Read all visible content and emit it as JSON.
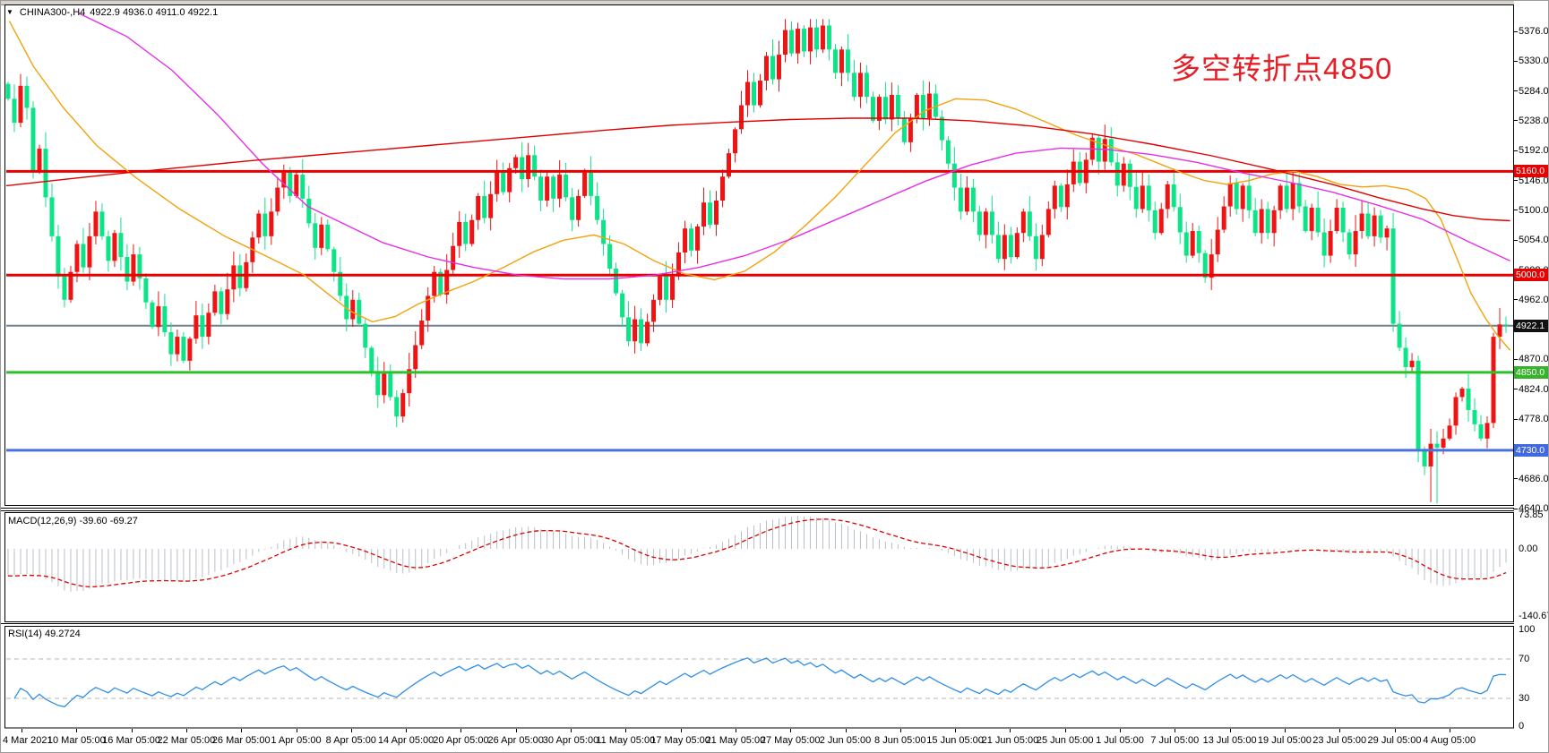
{
  "header": {
    "dropdown_icon": "▼",
    "symbol": "CHINA300-,H4",
    "ohlc_text": "4922.9 4936.0 4911.0 4922.1"
  },
  "annotation": {
    "text": "多空转折点4850",
    "color": "#e61e26"
  },
  "panels": {
    "macd": {
      "label": "MACD(12,26,9)",
      "values": "-39.60 -69.27",
      "axis": [
        "73.85",
        "0.00",
        "-140.67"
      ]
    },
    "rsi": {
      "label": "RSI(14)",
      "value": "49.2724",
      "axis": [
        "100",
        "70",
        "30",
        "0"
      ]
    }
  },
  "price_axis": {
    "ticks": [
      "5376.0",
      "5330.0",
      "5284.0",
      "5238.0",
      "5192.0",
      "5146.0",
      "5100.0",
      "5054.0",
      "5008.0",
      "4962.0",
      "4916.0",
      "4870.0",
      "4824.0",
      "4778.0",
      "4732.0",
      "4686.0",
      "4640.0"
    ],
    "badges": [
      {
        "label": "5160.0",
        "price": 5160,
        "bg": "#e60000"
      },
      {
        "label": "5000.0",
        "price": 5000,
        "bg": "#e60000"
      },
      {
        "label": "4922.1",
        "price": 4922.1,
        "bg": "#111111"
      },
      {
        "label": "4850.0",
        "price": 4850,
        "bg": "#36b22b"
      },
      {
        "label": "4730.0",
        "price": 4730,
        "bg": "#4169e1"
      }
    ]
  },
  "time_axis": {
    "labels": [
      "4 Mar 2021",
      "10 Mar 05:00",
      "16 Mar 05:00",
      "22 Mar 05:00",
      "26 Mar 05:00",
      "1 Apr 05:00",
      "8 Apr 05:00",
      "14 Apr 05:00",
      "20 Apr 05:00",
      "26 Apr 05:00",
      "30 Apr 05:00",
      "11 May 05:00",
      "17 May 05:00",
      "21 May 05:00",
      "27 May 05:00",
      "2 Jun 05:00",
      "8 Jun 05:00",
      "15 Jun 05:00",
      "21 Jun 05:00",
      "25 Jun 05:00",
      "1 Jul 05:00",
      "7 Jul 05:00",
      "13 Jul 05:00",
      "19 Jul 05:00",
      "23 Jul 05:00",
      "29 Jul 05:00",
      "4 Aug 05:00"
    ]
  },
  "chart_data": {
    "type": "candlestick",
    "title": "CHINA300-,H4",
    "timeframe": "H4",
    "current_bar": {
      "open": 4922.9,
      "high": 4936.0,
      "low": 4911.0,
      "close": 4922.1
    },
    "price_axis_range": [
      4640,
      5376
    ],
    "convention": "red = bullish, green = bearish (Chinese color convention)",
    "candle_up_color": "#ef1414",
    "candle_down_color": "#0de487",
    "open_first": 5295,
    "closes": [
      5272,
      5235,
      5292,
      5258,
      5160,
      5195,
      5120,
      5060,
      4998,
      4962,
      5005,
      5048,
      5012,
      5060,
      5098,
      5060,
      5022,
      5065,
      5028,
      4990,
      5032,
      4995,
      4958,
      4920,
      4952,
      4912,
      4878,
      4905,
      4868,
      4902,
      4938,
      4905,
      4942,
      4975,
      4940,
      4978,
      5015,
      4980,
      5020,
      5058,
      5095,
      5060,
      5098,
      5135,
      5158,
      5122,
      5155,
      5118,
      5080,
      5042,
      5078,
      5040,
      5005,
      4968,
      4932,
      4962,
      4925,
      4888,
      4852,
      4815,
      4848,
      4812,
      4782,
      4818,
      4855,
      4892,
      4930,
      4968,
      5005,
      4970,
      5008,
      5045,
      5082,
      5048,
      5085,
      5122,
      5088,
      5125,
      5162,
      5128,
      5165,
      5182,
      5148,
      5185,
      5152,
      5115,
      5152,
      5118,
      5155,
      5120,
      5085,
      5122,
      5158,
      5122,
      5085,
      5048,
      5010,
      4972,
      4935,
      4898,
      4932,
      4895,
      4928,
      4962,
      4998,
      4962,
      4998,
      5035,
      5072,
      5038,
      5075,
      5112,
      5078,
      5115,
      5152,
      5188,
      5225,
      5262,
      5298,
      5262,
      5300,
      5338,
      5302,
      5340,
      5378,
      5342,
      5380,
      5345,
      5382,
      5348,
      5385,
      5348,
      5312,
      5348,
      5312,
      5275,
      5312,
      5275,
      5238,
      5275,
      5240,
      5278,
      5242,
      5205,
      5242,
      5278,
      5242,
      5280,
      5244,
      5208,
      5172,
      5135,
      5098,
      5135,
      5098,
      5062,
      5098,
      5062,
      5025,
      5062,
      5028,
      5065,
      5098,
      5060,
      5025,
      5062,
      5102,
      5138,
      5105,
      5140,
      5175,
      5142,
      5178,
      5212,
      5175,
      5210,
      5174,
      5138,
      5172,
      5136,
      5102,
      5138,
      5100,
      5065,
      5102,
      5140,
      5105,
      5066,
      5030,
      5068,
      5034,
      4996,
      5032,
      5070,
      5106,
      5142,
      5102,
      5138,
      5100,
      5065,
      5102,
      5065,
      5100,
      5138,
      5102,
      5142,
      5106,
      5068,
      5104,
      5066,
      5030,
      5068,
      5104,
      5066,
      5032,
      5068,
      5095,
      5060,
      5092,
      5058,
      5072,
      4925,
      4888,
      4858,
      4868,
      4732,
      4705,
      4740,
      4734,
      4748,
      4768,
      4812,
      4825,
      4792,
      4770,
      4748,
      4772,
      4905,
      4924,
      4922.1
    ],
    "wick_low_overrides": {
      "227": 4650,
      "228": 4648
    },
    "horizontal_lines": [
      {
        "price": 5160,
        "color": "#e60000",
        "width": 3
      },
      {
        "price": 5000,
        "color": "#e60000",
        "width": 3
      },
      {
        "price": 4922.1,
        "color": "#708090",
        "width": 2
      },
      {
        "price": 4850,
        "color": "#2cc12c",
        "width": 3
      },
      {
        "price": 4730,
        "color": "#4970e0",
        "width": 3
      }
    ],
    "moving_averages": [
      {
        "name": "ma-fast-orange",
        "color": "#f2a20d",
        "points": [
          [
            0.002,
            5392
          ],
          [
            0.018,
            5322
          ],
          [
            0.038,
            5258
          ],
          [
            0.06,
            5200
          ],
          [
            0.085,
            5152
          ],
          [
            0.115,
            5102
          ],
          [
            0.145,
            5060
          ],
          [
            0.172,
            5030
          ],
          [
            0.198,
            5000
          ],
          [
            0.213,
            4972
          ],
          [
            0.228,
            4945
          ],
          [
            0.243,
            4928
          ],
          [
            0.258,
            4936
          ],
          [
            0.273,
            4955
          ],
          [
            0.29,
            4972
          ],
          [
            0.31,
            4990
          ],
          [
            0.33,
            5012
          ],
          [
            0.35,
            5036
          ],
          [
            0.37,
            5054
          ],
          [
            0.39,
            5062
          ],
          [
            0.41,
            5048
          ],
          [
            0.43,
            5022
          ],
          [
            0.45,
            5002
          ],
          [
            0.47,
            4993
          ],
          [
            0.49,
            5006
          ],
          [
            0.51,
            5036
          ],
          [
            0.53,
            5076
          ],
          [
            0.55,
            5120
          ],
          [
            0.57,
            5170
          ],
          [
            0.59,
            5220
          ],
          [
            0.61,
            5254
          ],
          [
            0.63,
            5272
          ],
          [
            0.65,
            5270
          ],
          [
            0.67,
            5256
          ],
          [
            0.69,
            5236
          ],
          [
            0.71,
            5216
          ],
          [
            0.73,
            5200
          ],
          [
            0.75,
            5186
          ],
          [
            0.765,
            5172
          ],
          [
            0.78,
            5158
          ],
          [
            0.795,
            5146
          ],
          [
            0.81,
            5140
          ],
          [
            0.825,
            5146
          ],
          [
            0.84,
            5156
          ],
          [
            0.855,
            5160
          ],
          [
            0.87,
            5152
          ],
          [
            0.885,
            5140
          ],
          [
            0.9,
            5136
          ],
          [
            0.915,
            5138
          ],
          [
            0.93,
            5132
          ],
          [
            0.942,
            5118
          ],
          [
            0.952,
            5086
          ],
          [
            0.962,
            5030
          ],
          [
            0.972,
            4972
          ],
          [
            0.982,
            4932
          ],
          [
            0.99,
            4906
          ],
          [
            0.998,
            4884
          ]
        ]
      },
      {
        "name": "ma-mid-magenta",
        "color": "#e62ee6",
        "points": [
          [
            0.048,
            5404
          ],
          [
            0.08,
            5368
          ],
          [
            0.11,
            5316
          ],
          [
            0.14,
            5248
          ],
          [
            0.17,
            5172
          ],
          [
            0.2,
            5106
          ],
          [
            0.225,
            5078
          ],
          [
            0.25,
            5050
          ],
          [
            0.28,
            5028
          ],
          [
            0.31,
            5012
          ],
          [
            0.34,
            5000
          ],
          [
            0.37,
            4994
          ],
          [
            0.4,
            4994
          ],
          [
            0.43,
            5000
          ],
          [
            0.46,
            5012
          ],
          [
            0.49,
            5030
          ],
          [
            0.52,
            5055
          ],
          [
            0.55,
            5085
          ],
          [
            0.58,
            5115
          ],
          [
            0.61,
            5145
          ],
          [
            0.64,
            5170
          ],
          [
            0.67,
            5188
          ],
          [
            0.7,
            5196
          ],
          [
            0.73,
            5194
          ],
          [
            0.76,
            5186
          ],
          [
            0.79,
            5174
          ],
          [
            0.82,
            5158
          ],
          [
            0.85,
            5144
          ],
          [
            0.88,
            5128
          ],
          [
            0.91,
            5108
          ],
          [
            0.94,
            5086
          ],
          [
            0.97,
            5052
          ],
          [
            0.998,
            5022
          ]
        ]
      },
      {
        "name": "ma-slow-red",
        "color": "#e00000",
        "points": [
          [
            0.0,
            5138
          ],
          [
            0.04,
            5148
          ],
          [
            0.08,
            5158
          ],
          [
            0.12,
            5167
          ],
          [
            0.16,
            5176
          ],
          [
            0.2,
            5184
          ],
          [
            0.24,
            5192
          ],
          [
            0.28,
            5200
          ],
          [
            0.32,
            5208
          ],
          [
            0.36,
            5216
          ],
          [
            0.4,
            5224
          ],
          [
            0.44,
            5231
          ],
          [
            0.48,
            5236
          ],
          [
            0.52,
            5240
          ],
          [
            0.56,
            5242
          ],
          [
            0.6,
            5242
          ],
          [
            0.64,
            5238
          ],
          [
            0.68,
            5230
          ],
          [
            0.72,
            5218
          ],
          [
            0.76,
            5202
          ],
          [
            0.8,
            5184
          ],
          [
            0.84,
            5163
          ],
          [
            0.88,
            5140
          ],
          [
            0.91,
            5120
          ],
          [
            0.94,
            5102
          ],
          [
            0.96,
            5092
          ],
          [
            0.98,
            5086
          ],
          [
            0.998,
            5084
          ]
        ]
      }
    ],
    "macd": {
      "fast": 12,
      "slow": 26,
      "signal": 9,
      "current_macd": -39.6,
      "current_signal": -69.27,
      "axis_max": 73.85,
      "axis_min": -140.67,
      "hist_color": "#b9bec7",
      "signal_color": "#dd0000"
    },
    "rsi": {
      "period": 14,
      "current": 49.2724,
      "levels": [
        70,
        30
      ],
      "color": "#2f8fe8"
    }
  }
}
